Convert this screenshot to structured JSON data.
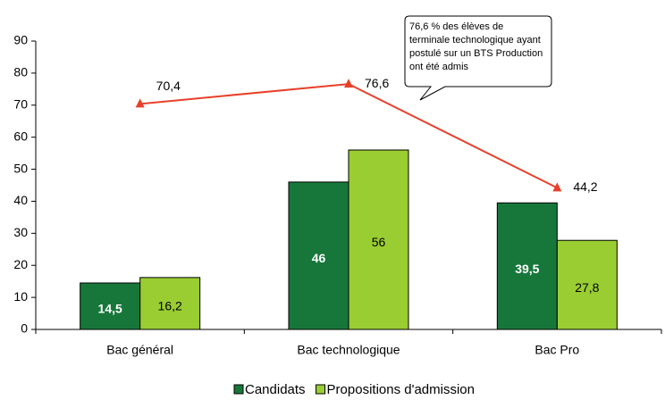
{
  "chart_data": {
    "type": "bar",
    "categories": [
      "Bac général",
      "Bac technologique",
      "Bac Pro"
    ],
    "series": [
      {
        "name": "Candidats",
        "color": "#17773a",
        "values": [
          14.5,
          46,
          39.5
        ],
        "value_labels": [
          "14,5",
          "46",
          "39,5"
        ]
      },
      {
        "name": "Propositions d'admission",
        "color": "#9acd32",
        "values": [
          16.2,
          56,
          27.8
        ],
        "value_labels": [
          "16,2",
          "56",
          "27,8"
        ]
      }
    ],
    "line": {
      "color": "#e8402a",
      "values": [
        70.4,
        76.6,
        44.2
      ],
      "value_labels": [
        "70,4",
        "76,6",
        "44,2"
      ]
    },
    "annotation": [
      "76,6 % des élèves de",
      "terminale technologique ayant",
      "postulé sur un BTS Production",
      "ont été admis"
    ],
    "ylim": [
      0,
      90
    ],
    "yticks": [
      0,
      10,
      20,
      30,
      40,
      50,
      60,
      70,
      80,
      90
    ],
    "grid": false
  }
}
